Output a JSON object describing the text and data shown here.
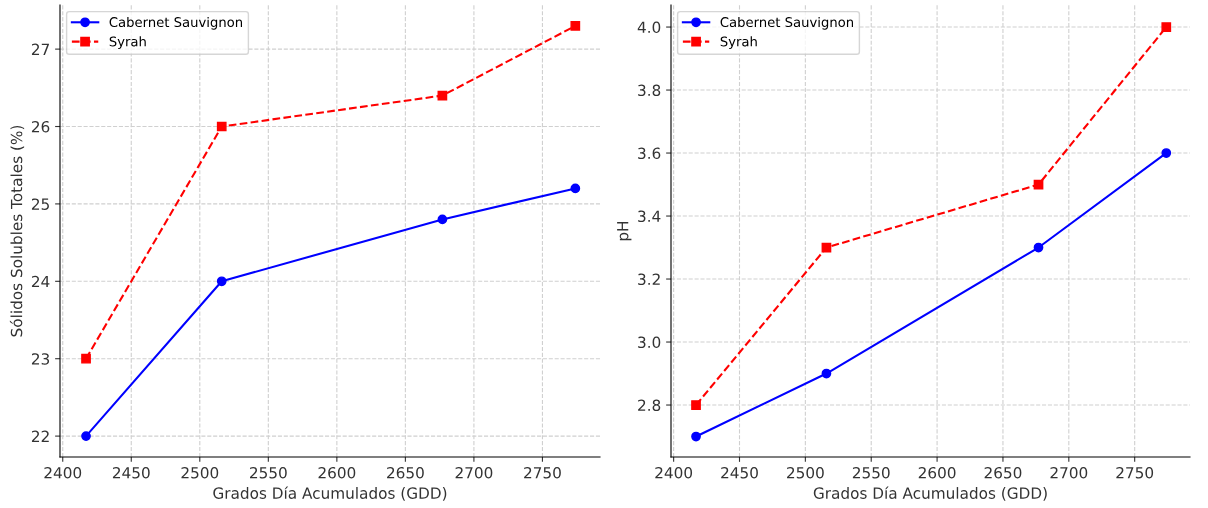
{
  "chart_data": [
    {
      "type": "line",
      "xlabel": "Grados Día Acumulados (GDD)",
      "ylabel": "Sólidos Solubles Totales (%)",
      "x": [
        2417,
        2516,
        2677,
        2774
      ],
      "series": [
        {
          "name": "Cabernet Sauvignon",
          "color": "#0000ff",
          "values": [
            22,
            24,
            24.8,
            25.2
          ],
          "marker": "circle",
          "line_style": "solid"
        },
        {
          "name": "Syrah",
          "color": "#ff0000",
          "values": [
            23,
            26,
            26.4,
            27.3
          ],
          "marker": "square",
          "line_style": "dashed"
        }
      ],
      "xlim": [
        2398,
        2792
      ],
      "xticks": [
        2400,
        2450,
        2500,
        2550,
        2600,
        2650,
        2700,
        2750
      ],
      "ylim": [
        21.73,
        27.57
      ],
      "yticks": [
        22,
        23,
        24,
        25,
        26,
        27
      ],
      "grid": true,
      "legend": "top left"
    },
    {
      "type": "line",
      "xlabel": "Grados Día Acumulados (GDD)",
      "ylabel": "pH",
      "x": [
        2417,
        2516,
        2677,
        2774
      ],
      "series": [
        {
          "name": "Cabernet Sauvignon",
          "color": "#0000ff",
          "values": [
            2.7,
            2.9,
            3.3,
            3.6
          ],
          "marker": "circle",
          "line_style": "solid"
        },
        {
          "name": "Syrah",
          "color": "#ff0000",
          "values": [
            2.8,
            3.3,
            3.5,
            4.0
          ],
          "marker": "square",
          "line_style": "dashed"
        }
      ],
      "xlim": [
        2398,
        2792
      ],
      "xticks": [
        2400,
        2450,
        2500,
        2550,
        2600,
        2650,
        2700,
        2750
      ],
      "ylim": [
        2.635,
        4.07
      ],
      "yticks": [
        {
          "value": 2.8,
          "label": "2.8"
        },
        {
          "value": 3.0,
          "label": "3.0"
        },
        {
          "value": 3.2,
          "label": "3.2"
        },
        {
          "value": 3.4,
          "label": "3.4"
        },
        {
          "value": 3.6,
          "label": "3.6"
        },
        {
          "value": 3.8,
          "label": "3.8"
        },
        {
          "value": 4.0,
          "label": "4.0"
        }
      ],
      "grid": true,
      "legend": "top left"
    }
  ]
}
